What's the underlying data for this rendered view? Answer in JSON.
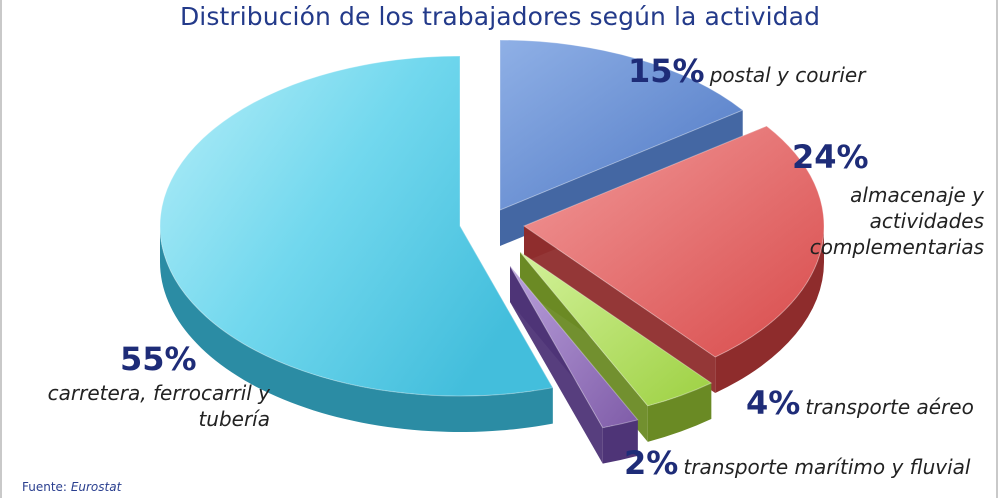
{
  "chart_data": {
    "type": "pie",
    "title": "Distribución de los trabajadores según la actividad",
    "slices": [
      {
        "label": "postal y courier",
        "value": 15,
        "value_label": "15%",
        "color": "#5b86cf"
      },
      {
        "label": "almacenaje y actividades complementarias",
        "value": 24,
        "value_label": "24%",
        "color": "#e06060"
      },
      {
        "label": "transporte aéreo",
        "value": 4,
        "value_label": "4%",
        "color": "#a6da4e"
      },
      {
        "label": "transporte marítimo y fluvial",
        "value": 2,
        "value_label": "2%",
        "color": "#8a68b4"
      },
      {
        "label": "carretera, ferrocarril y tubería",
        "value": 55,
        "value_label": "55%",
        "color": "#6ad6ec"
      }
    ],
    "legend": "none",
    "exploded": true,
    "style": "3d"
  },
  "source": {
    "label": "Fuente:",
    "name": "Eurostat"
  }
}
